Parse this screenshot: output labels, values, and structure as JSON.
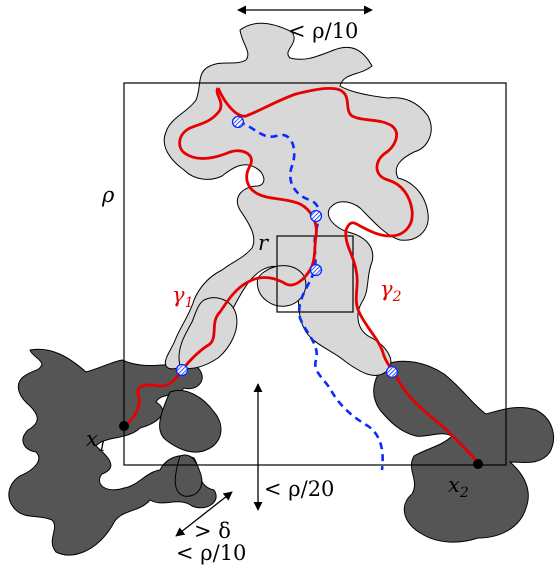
{
  "labels": {
    "rho": "ρ",
    "r": "r",
    "gamma1_base": "γ",
    "gamma1_sub": "1",
    "gamma2_base": "γ",
    "gamma2_sub": "2",
    "x1_base": "x",
    "x1_sub": "1",
    "x2_base": "x",
    "x2_sub": "2",
    "top_dim": "< ρ/10",
    "mid_dim": "< ρ/20",
    "delta_dim": "> δ",
    "bottom_dim": "< ρ/10"
  },
  "colors": {
    "light_cluster": "#d8d8d8",
    "dark_cluster": "#555555",
    "path_red": "#e60000",
    "path_blue": "#0a2bff",
    "outline": "#000000"
  }
}
